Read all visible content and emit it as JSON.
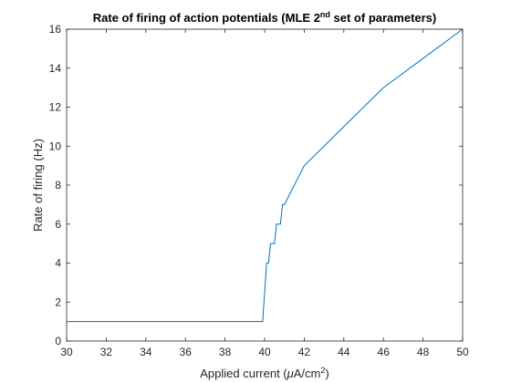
{
  "chart_data": {
    "type": "line",
    "title": {
      "prefix": "Rate of firing of action potentials (MLE 2",
      "superscript": "nd",
      "suffix": " set of parameters)"
    },
    "xlabel": {
      "prefix": "Applied current (",
      "mu": "μ",
      "middle": "A/cm",
      "superscript": "2",
      "suffix": ")"
    },
    "ylabel": "Rate of firing (Hz)",
    "xlim": [
      30,
      50
    ],
    "ylim": [
      0,
      16
    ],
    "xticks": [
      30,
      32,
      34,
      36,
      38,
      40,
      42,
      44,
      46,
      48,
      50
    ],
    "yticks": [
      0,
      2,
      4,
      6,
      8,
      10,
      12,
      14,
      16
    ],
    "grid": false,
    "series": [
      {
        "color": "#0072BD",
        "x": [
          30,
          39.9,
          40.1,
          40.2,
          40.3,
          40.4,
          40.5,
          40.6,
          40.7,
          40.8,
          40.9,
          41.0,
          42.0,
          44.0,
          46.0,
          48.0,
          50.0
        ],
        "y": [
          1,
          1,
          4,
          4,
          5,
          5,
          5,
          6,
          6,
          6,
          7,
          7,
          9,
          11,
          13,
          14.5,
          16
        ]
      }
    ]
  }
}
